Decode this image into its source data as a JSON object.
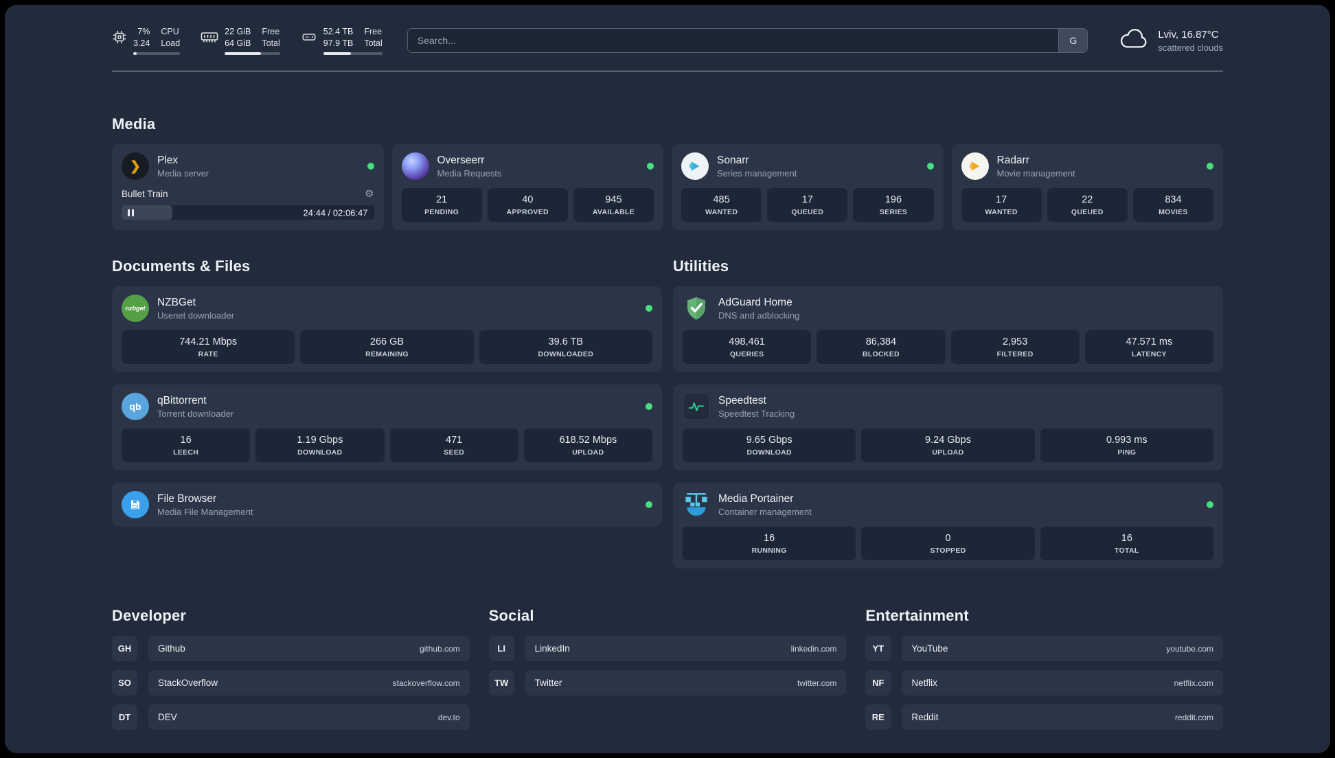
{
  "topbar": {
    "resources": [
      {
        "line1_value": "7%",
        "line1_label": "CPU",
        "line2_value": "3.24",
        "line2_label": "Load",
        "progress": 7
      },
      {
        "line1_value": "22 GiB",
        "line1_label": "Free",
        "line2_value": "64 GiB",
        "line2_label": "Total",
        "progress": 66
      },
      {
        "line1_value": "52.4 TB",
        "line1_label": "Free",
        "line2_value": "97.9 TB",
        "line2_label": "Total",
        "progress": 47
      }
    ],
    "search": {
      "placeholder": "Search...",
      "provider_label": "G"
    },
    "weather": {
      "location": "Lviv, 16.87°C",
      "condition": "scattered clouds"
    }
  },
  "colors": {
    "accent_green": "#4ade80",
    "background": "#212b3b",
    "card": "#2b3547"
  },
  "sections": {
    "media": {
      "title": "Media",
      "plex": {
        "name": "Plex",
        "subtitle": "Media server",
        "now_playing": {
          "title": "Bullet Train",
          "time_display": "24:44 / 02:06:47",
          "progress_percent": 20
        }
      },
      "overseerr": {
        "name": "Overseerr",
        "subtitle": "Media Requests",
        "stats": [
          {
            "value": "21",
            "label": "PENDING"
          },
          {
            "value": "40",
            "label": "APPROVED"
          },
          {
            "value": "945",
            "label": "AVAILABLE"
          }
        ]
      },
      "sonarr": {
        "name": "Sonarr",
        "subtitle": "Series management",
        "stats": [
          {
            "value": "485",
            "label": "WANTED"
          },
          {
            "value": "17",
            "label": "QUEUED"
          },
          {
            "value": "196",
            "label": "SERIES"
          }
        ]
      },
      "radarr": {
        "name": "Radarr",
        "subtitle": "Movie management",
        "stats": [
          {
            "value": "17",
            "label": "WANTED"
          },
          {
            "value": "22",
            "label": "QUEUED"
          },
          {
            "value": "834",
            "label": "MOVIES"
          }
        ]
      }
    },
    "documents": {
      "title": "Documents & Files",
      "nzbget": {
        "name": "NZBGet",
        "subtitle": "Usenet downloader",
        "icon_text": "nzbget",
        "stats": [
          {
            "value": "744.21 Mbps",
            "label": "RATE"
          },
          {
            "value": "266 GB",
            "label": "REMAINING"
          },
          {
            "value": "39.6 TB",
            "label": "DOWNLOADED"
          }
        ]
      },
      "qbittorrent": {
        "name": "qBittorrent",
        "subtitle": "Torrent downloader",
        "icon_text": "qb",
        "stats": [
          {
            "value": "16",
            "label": "LEECH"
          },
          {
            "value": "1.19 Gbps",
            "label": "DOWNLOAD"
          },
          {
            "value": "471",
            "label": "SEED"
          },
          {
            "value": "618.52 Mbps",
            "label": "UPLOAD"
          }
        ]
      },
      "filebrowser": {
        "name": "File Browser",
        "subtitle": "Media File Management"
      }
    },
    "utilities": {
      "title": "Utilities",
      "adguard": {
        "name": "AdGuard Home",
        "subtitle": "DNS and adblocking",
        "stats": [
          {
            "value": "498,461",
            "label": "QUERIES"
          },
          {
            "value": "86,384",
            "label": "BLOCKED"
          },
          {
            "value": "2,953",
            "label": "FILTERED"
          },
          {
            "value": "47.571 ms",
            "label": "LATENCY"
          }
        ]
      },
      "speedtest": {
        "name": "Speedtest",
        "subtitle": "Speedtest Tracking",
        "stats": [
          {
            "value": "9.65 Gbps",
            "label": "DOWNLOAD"
          },
          {
            "value": "9.24 Gbps",
            "label": "UPLOAD"
          },
          {
            "value": "0.993 ms",
            "label": "PING"
          }
        ]
      },
      "portainer": {
        "name": "Media Portainer",
        "subtitle": "Container management",
        "stats": [
          {
            "value": "16",
            "label": "RUNNING"
          },
          {
            "value": "0",
            "label": "STOPPED"
          },
          {
            "value": "16",
            "label": "TOTAL"
          }
        ]
      }
    },
    "bookmarks": [
      {
        "title": "Developer",
        "links": [
          {
            "abbr": "GH",
            "name": "Github",
            "domain": "github.com"
          },
          {
            "abbr": "SO",
            "name": "StackOverflow",
            "domain": "stackoverflow.com"
          },
          {
            "abbr": "DT",
            "name": "DEV",
            "domain": "dev.to"
          }
        ]
      },
      {
        "title": "Social",
        "links": [
          {
            "abbr": "LI",
            "name": "LinkedIn",
            "domain": "linkedin.com"
          },
          {
            "abbr": "TW",
            "name": "Twitter",
            "domain": "twitter.com"
          }
        ]
      },
      {
        "title": "Entertainment",
        "links": [
          {
            "abbr": "YT",
            "name": "YouTube",
            "domain": "youtube.com"
          },
          {
            "abbr": "NF",
            "name": "Netflix",
            "domain": "netflix.com"
          },
          {
            "abbr": "RE",
            "name": "Reddit",
            "domain": "reddit.com"
          }
        ]
      }
    ]
  }
}
